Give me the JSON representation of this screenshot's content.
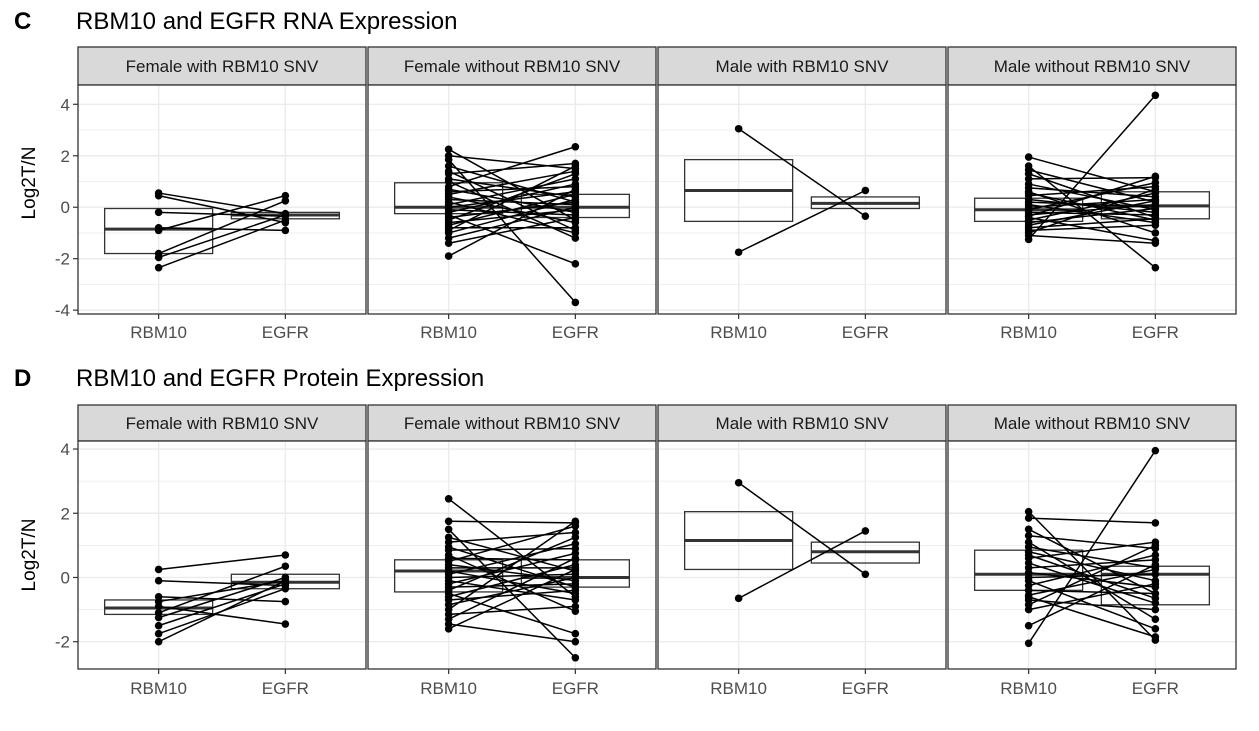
{
  "figure": {
    "rows": [
      {
        "letter": "C",
        "title": "RBM10 and EGFR RNA Expression",
        "ylabel": "Log2T/N",
        "yticks": [
          -4,
          -2,
          0,
          2,
          4
        ],
        "ylim": [
          -4.15,
          4.75
        ]
      },
      {
        "letter": "D",
        "title": "RBM10 and EGFR Protein Expression",
        "ylabel": "Log2T/N",
        "yticks": [
          -2,
          0,
          2,
          4
        ],
        "ylim": [
          -2.85,
          4.25
        ]
      }
    ],
    "panel_labels": [
      "Female with RBM10 SNV",
      "Female without RBM10 SNV",
      "Male with RBM10 SNV",
      "Male without RBM10 SNV"
    ],
    "x_categories": [
      "RBM10",
      "EGFR"
    ],
    "colors": {
      "strip_fill": "#d9d9d9",
      "frame": "#333333",
      "grid": "#ebebeb",
      "mark": "#000000"
    }
  },
  "chart_data": [
    {
      "type": "box-paired",
      "title": "RBM10 and EGFR RNA Expression",
      "ylabel": "Log2T/N",
      "ylim": [
        -4.15,
        4.75
      ],
      "yticks": [
        -4,
        -2,
        0,
        2,
        4
      ],
      "categories": [
        "RBM10",
        "EGFR"
      ],
      "grid": true,
      "facets": [
        {
          "label": "Female with RBM10 SNV",
          "box": {
            "RBM10": {
              "q1": -1.8,
              "median": -0.85,
              "q3": -0.05
            },
            "EGFR": {
              "q1": -0.45,
              "median": -0.3,
              "q3": -0.2
            }
          },
          "pairs": [
            [
              0.55,
              -0.25
            ],
            [
              0.45,
              -0.6
            ],
            [
              -0.2,
              -0.35
            ],
            [
              -0.8,
              -0.9
            ],
            [
              -0.9,
              0.45
            ],
            [
              -1.8,
              0.25
            ],
            [
              -1.95,
              -0.3
            ],
            [
              -2.35,
              -0.5
            ]
          ]
        },
        {
          "label": "Female without RBM10 SNV",
          "box": {
            "RBM10": {
              "q1": -0.25,
              "median": 0.0,
              "q3": 0.95
            },
            "EGFR": {
              "q1": -0.4,
              "median": 0.0,
              "q3": 0.5
            }
          },
          "pairs": [
            [
              2.25,
              -0.5
            ],
            [
              2.0,
              1.5
            ],
            [
              1.85,
              -3.7
            ],
            [
              1.6,
              0.2
            ],
            [
              1.4,
              -0.9
            ],
            [
              1.3,
              1.7
            ],
            [
              1.1,
              0.4
            ],
            [
              1.0,
              -1.2
            ],
            [
              0.8,
              2.35
            ],
            [
              0.7,
              -0.2
            ],
            [
              0.6,
              0.8
            ],
            [
              0.5,
              1.4
            ],
            [
              0.4,
              -0.6
            ],
            [
              0.3,
              0.1
            ],
            [
              0.2,
              -1.0
            ],
            [
              0.1,
              1.1
            ],
            [
              0.0,
              0.6
            ],
            [
              -0.1,
              -0.3
            ],
            [
              -0.2,
              0.9
            ],
            [
              -0.3,
              -2.2
            ],
            [
              -0.4,
              0.2
            ],
            [
              -0.5,
              1.3
            ],
            [
              -0.6,
              -0.1
            ],
            [
              -0.7,
              0.5
            ],
            [
              -0.8,
              -0.8
            ],
            [
              -0.9,
              1.6
            ],
            [
              -1.0,
              0.3
            ],
            [
              -1.2,
              0.0
            ],
            [
              -1.4,
              -0.4
            ],
            [
              -1.9,
              0.7
            ]
          ]
        },
        {
          "label": "Male with RBM10 SNV",
          "box": {
            "RBM10": {
              "q1": -0.55,
              "median": 0.65,
              "q3": 1.85
            },
            "EGFR": {
              "q1": -0.05,
              "median": 0.15,
              "q3": 0.4
            }
          },
          "pairs": [
            [
              3.05,
              -0.35
            ],
            [
              -1.75,
              0.65
            ]
          ]
        },
        {
          "label": "Male without RBM10 SNV",
          "box": {
            "RBM10": {
              "q1": -0.55,
              "median": -0.1,
              "q3": 0.35
            },
            "EGFR": {
              "q1": -0.45,
              "median": 0.05,
              "q3": 0.6
            }
          },
          "pairs": [
            [
              1.95,
              0.6
            ],
            [
              1.6,
              -2.35
            ],
            [
              1.45,
              0.2
            ],
            [
              1.3,
              -0.4
            ],
            [
              1.1,
              1.15
            ],
            [
              0.9,
              -0.1
            ],
            [
              0.75,
              0.4
            ],
            [
              0.6,
              -1.0
            ],
            [
              0.45,
              0.8
            ],
            [
              0.3,
              -0.2
            ],
            [
              0.2,
              0.0
            ],
            [
              0.1,
              -0.6
            ],
            [
              0.0,
              0.3
            ],
            [
              -0.1,
              0.95
            ],
            [
              -0.2,
              -0.3
            ],
            [
              -0.3,
              0.1
            ],
            [
              -0.4,
              -1.3
            ],
            [
              -0.5,
              0.55
            ],
            [
              -0.6,
              -0.05
            ],
            [
              -0.7,
              0.25
            ],
            [
              -0.8,
              -0.45
            ],
            [
              -0.9,
              -0.7
            ],
            [
              -1.0,
              0.7
            ],
            [
              -1.1,
              -1.4
            ],
            [
              -1.25,
              4.35
            ],
            [
              -0.35,
              1.2
            ],
            [
              0.55,
              -0.5
            ]
          ]
        }
      ]
    },
    {
      "type": "box-paired",
      "title": "RBM10 and EGFR Protein Expression",
      "ylabel": "Log2T/N",
      "ylim": [
        -2.85,
        4.25
      ],
      "yticks": [
        -2,
        0,
        2,
        4
      ],
      "categories": [
        "RBM10",
        "EGFR"
      ],
      "grid": true,
      "facets": [
        {
          "label": "Female with RBM10 SNV",
          "box": {
            "RBM10": {
              "q1": -1.15,
              "median": -0.95,
              "q3": -0.7
            },
            "EGFR": {
              "q1": -0.35,
              "median": -0.15,
              "q3": 0.1
            }
          },
          "pairs": [
            [
              0.25,
              0.7
            ],
            [
              -0.1,
              -0.25
            ],
            [
              -0.6,
              -0.75
            ],
            [
              -0.75,
              -0.1
            ],
            [
              -0.9,
              -1.45
            ],
            [
              -1.1,
              0.35
            ],
            [
              -1.25,
              0.0
            ],
            [
              -1.5,
              -0.2
            ],
            [
              -1.75,
              -0.35
            ],
            [
              -2.0,
              -0.1
            ]
          ]
        },
        {
          "label": "Female without RBM10 SNV",
          "box": {
            "RBM10": {
              "q1": -0.45,
              "median": 0.2,
              "q3": 0.55
            },
            "EGFR": {
              "q1": -0.3,
              "median": 0.0,
              "q3": 0.55
            }
          },
          "pairs": [
            [
              2.45,
              -0.6
            ],
            [
              1.75,
              1.7
            ],
            [
              1.5,
              -2.5
            ],
            [
              1.25,
              0.2
            ],
            [
              1.1,
              1.4
            ],
            [
              0.95,
              -0.3
            ],
            [
              0.85,
              0.9
            ],
            [
              0.7,
              -1.05
            ],
            [
              0.6,
              0.55
            ],
            [
              0.5,
              1.6
            ],
            [
              0.4,
              -0.1
            ],
            [
              0.3,
              0.3
            ],
            [
              0.2,
              -0.5
            ],
            [
              0.1,
              1.05
            ],
            [
              0.0,
              0.1
            ],
            [
              -0.1,
              -0.7
            ],
            [
              -0.2,
              0.75
            ],
            [
              -0.3,
              -0.2
            ],
            [
              -0.4,
              1.25
            ],
            [
              -0.5,
              -1.75
            ],
            [
              -0.6,
              0.4
            ],
            [
              -0.7,
              -0.4
            ],
            [
              -0.85,
              0.0
            ],
            [
              -1.0,
              1.75
            ],
            [
              -1.15,
              -0.9
            ],
            [
              -1.3,
              0.6
            ],
            [
              -1.45,
              -2.0
            ],
            [
              -1.6,
              0.25
            ]
          ]
        },
        {
          "label": "Male with RBM10 SNV",
          "box": {
            "RBM10": {
              "q1": 0.25,
              "median": 1.15,
              "q3": 2.05
            },
            "EGFR": {
              "q1": 0.45,
              "median": 0.8,
              "q3": 1.1
            }
          },
          "pairs": [
            [
              2.95,
              0.1
            ],
            [
              -0.65,
              1.45
            ]
          ]
        },
        {
          "label": "Male without RBM10 SNV",
          "box": {
            "RBM10": {
              "q1": -0.4,
              "median": 0.1,
              "q3": 0.85
            },
            "EGFR": {
              "q1": -0.85,
              "median": 0.1,
              "q3": 0.35
            }
          },
          "pairs": [
            [
              2.05,
              -1.95
            ],
            [
              1.85,
              1.7
            ],
            [
              1.5,
              -0.5
            ],
            [
              1.3,
              0.9
            ],
            [
              1.1,
              -1.3
            ],
            [
              0.95,
              0.3
            ],
            [
              0.8,
              -0.1
            ],
            [
              0.6,
              1.1
            ],
            [
              0.45,
              -0.8
            ],
            [
              0.3,
              0.55
            ],
            [
              0.15,
              -0.3
            ],
            [
              0.0,
              0.1
            ],
            [
              -0.1,
              -1.6
            ],
            [
              -0.25,
              0.7
            ],
            [
              -0.4,
              -0.5
            ],
            [
              -0.55,
              0.25
            ],
            [
              -0.7,
              -1.0
            ],
            [
              -0.85,
              1.0
            ],
            [
              -1.0,
              -0.2
            ],
            [
              -1.5,
              0.4
            ],
            [
              -2.05,
              3.95
            ],
            [
              -0.6,
              -1.85
            ],
            [
              0.7,
              -0.65
            ]
          ]
        }
      ]
    }
  ]
}
